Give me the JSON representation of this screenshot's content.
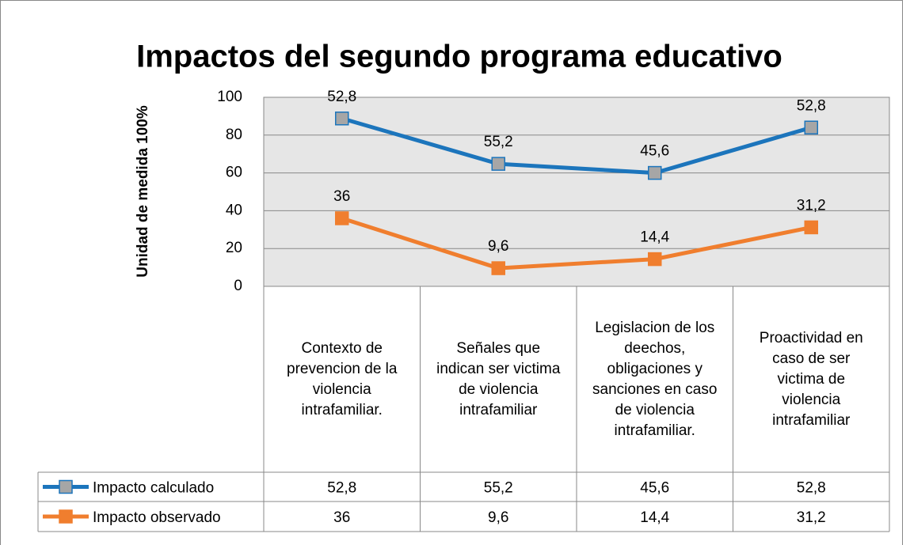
{
  "chart_data": {
    "type": "line",
    "stacked": true,
    "title": "Impactos del segundo programa educativo",
    "ylabel": "Unidad de medida 100%",
    "categories": [
      "Contexto de prevencion de la violencia intrafamiliar.",
      "Señales que indican ser victima de violencia intrafamiliar",
      "Legislacion de los deechos, obligaciones y sanciones en caso de violencia intrafamiliar.",
      "Proactividad en caso de ser victima de violencia intrafamiliar"
    ],
    "series": [
      {
        "name": "Impacto calculado",
        "color": "#1c75bc",
        "marker_fill": "#a6a6a6",
        "values": [
          52.8,
          55.2,
          45.6,
          52.8
        ],
        "value_labels": [
          "52,8",
          "55,2",
          "45,6",
          "52,8"
        ]
      },
      {
        "name": "Impacto observado",
        "color": "#f07e2e",
        "marker_fill": "#f07e2e",
        "values": [
          36,
          9.6,
          14.4,
          31.2
        ],
        "value_labels": [
          "36",
          "9,6",
          "14,4",
          "31,2"
        ]
      }
    ],
    "ylim": [
      0,
      100
    ],
    "yticks": [
      0,
      20,
      40,
      60,
      80,
      100
    ],
    "grid": true
  }
}
